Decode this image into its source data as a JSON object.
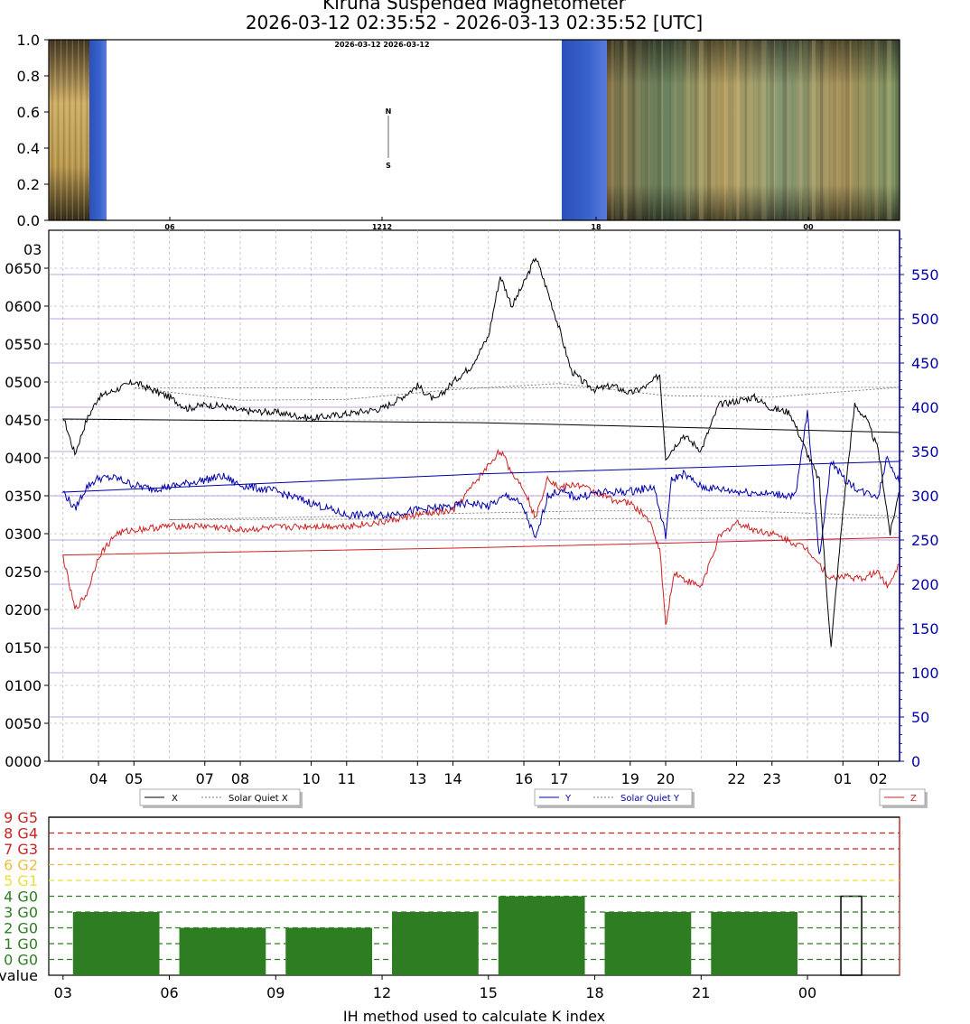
{
  "page": {
    "title_line1": "Kiruna Suspended Magnetometer",
    "title_line2": "2026-03-12 02:35:52 - 2026-03-13 02:35:52 [UTC]"
  },
  "colors": {
    "x": "#000000",
    "y": "#0000aa",
    "z": "#cc2222",
    "quiet": "#777777",
    "hlines": "#9966cc",
    "kbar": "#2e7d22",
    "g5": "#cc2222",
    "g1": "#e8e040",
    "g0": "#2e7d22"
  },
  "chart_data": [
    {
      "type": "heatmap",
      "panel": "keogram",
      "ylim": [
        0,
        1
      ],
      "yticks": [
        "0.0",
        "0.2",
        "0.4",
        "0.6",
        "0.8",
        "1.0"
      ],
      "overlay_labels": {
        "date": "2026-03-12 2026-03-12",
        "north": "N",
        "south": "S",
        "bottom_ticks": [
          "06",
          "1212",
          "18",
          "00"
        ]
      }
    },
    {
      "type": "line",
      "panel": "magnetometer",
      "xlabel": "",
      "ylabel": "",
      "x_ticks": [
        "04",
        "05",
        "07",
        "08",
        "10",
        "11",
        "13",
        "14",
        "16",
        "17",
        "19",
        "20",
        "22",
        "23",
        "01",
        "02"
      ],
      "left_ticks": [
        "0650",
        "0600",
        "0550",
        "0500",
        "0450",
        "0400",
        "0350",
        "0300",
        "0250",
        "0200",
        "0150",
        "0100",
        "0050",
        "0000"
      ],
      "right_ticks": [
        "0",
        "50",
        "100",
        "150",
        "200",
        "250",
        "300",
        "350",
        "400",
        "450",
        "500",
        "550"
      ],
      "ylim_left": [
        0,
        700
      ],
      "ylim_right": [
        0,
        600
      ],
      "corner_label": "03",
      "series": [
        {
          "name": "X",
          "axis": "left",
          "x": [
            "2026-03-12 02:35",
            "03:00",
            "03:20",
            "03:40",
            "04:00",
            "04:30",
            "05:00",
            "05:30",
            "06:00",
            "06:30",
            "07:00",
            "07:30",
            "08:00",
            "09:00",
            "10:00",
            "10:30",
            "11:00",
            "12:00",
            "12:30",
            "13:00",
            "13:30",
            "14:00",
            "14:30",
            "15:00",
            "15:20",
            "15:40",
            "16:00",
            "16:20",
            "16:40",
            "17:00",
            "17:20",
            "17:40",
            "18:00",
            "18:30",
            "19:00",
            "19:30",
            "19:50",
            "20:00",
            "20:30",
            "21:00",
            "21:30",
            "22:00",
            "22:30",
            "23:00",
            "23:30",
            "00:00",
            "00:20",
            "00:30",
            "00:40",
            "01:00",
            "01:20",
            "01:40",
            "02:00",
            "2026-03-13 02:20",
            "2026-03-13 02:35"
          ],
          "values": [
            430,
            455,
            405,
            450,
            480,
            490,
            500,
            490,
            480,
            465,
            470,
            468,
            462,
            460,
            452,
            455,
            458,
            465,
            478,
            495,
            475,
            500,
            520,
            560,
            640,
            600,
            630,
            665,
            620,
            570,
            515,
            500,
            490,
            495,
            485,
            495,
            510,
            400,
            430,
            410,
            470,
            475,
            480,
            465,
            460,
            405,
            370,
            250,
            150,
            330,
            470,
            450,
            410,
            300,
            355
          ]
        },
        {
          "name": "Solar Quiet X",
          "axis": "left",
          "dashed": true,
          "x": [
            "2026-03-12 02:35",
            "05:00",
            "08:00",
            "11:00",
            "14:00",
            "17:00",
            "20:00",
            "23:00",
            "2026-03-13 02:35"
          ],
          "values": [
            493,
            492,
            476,
            477,
            490,
            498,
            482,
            480,
            493
          ]
        },
        {
          "name": "Y",
          "axis": "right",
          "x": [
            "2026-03-12 02:35",
            "03:00",
            "03:20",
            "03:40",
            "04:00",
            "04:30",
            "05:00",
            "05:30",
            "06:00",
            "07:00",
            "07:30",
            "08:00",
            "09:00",
            "10:00",
            "11:00",
            "12:00",
            "13:00",
            "14:00",
            "14:30",
            "15:00",
            "15:30",
            "15:45",
            "16:00",
            "16:20",
            "16:40",
            "17:00",
            "17:30",
            "18:00",
            "19:00",
            "19:40",
            "20:00",
            "20:10",
            "20:30",
            "21:00",
            "22:00",
            "23:00",
            "23:40",
            "00:00",
            "00:20",
            "00:40",
            "01:00",
            "01:30",
            "02:00",
            "2026-03-13 02:15",
            "2026-03-13 02:35"
          ],
          "values": [
            340,
            305,
            285,
            310,
            320,
            320,
            312,
            308,
            310,
            318,
            322,
            312,
            305,
            292,
            278,
            278,
            284,
            288,
            292,
            288,
            300,
            296,
            285,
            250,
            300,
            305,
            298,
            303,
            305,
            310,
            255,
            318,
            325,
            310,
            305,
            302,
            300,
            395,
            230,
            340,
            320,
            305,
            300,
            345,
            315
          ]
        },
        {
          "name": "Solar Quiet Y",
          "axis": "right",
          "dashed": true,
          "x": [
            "2026-03-12 02:35",
            "06:00",
            "10:00",
            "14:00",
            "18:00",
            "22:00",
            "2026-03-13 02:35"
          ],
          "values": [
            275,
            273,
            276,
            280,
            283,
            283,
            277
          ]
        },
        {
          "name": "Z",
          "axis": "left",
          "x": [
            "2026-03-12 02:35",
            "03:00",
            "03:20",
            "03:40",
            "04:00",
            "04:30",
            "05:00",
            "06:00",
            "07:00",
            "08:00",
            "09:00",
            "10:00",
            "11:00",
            "12:00",
            "13:00",
            "14:00",
            "14:30",
            "15:00",
            "15:20",
            "15:40",
            "16:00",
            "16:20",
            "16:40",
            "17:00",
            "17:30",
            "18:00",
            "18:30",
            "19:00",
            "19:30",
            "19:50",
            "20:00",
            "20:15",
            "20:30",
            "21:00",
            "21:30",
            "22:00",
            "22:30",
            "23:00",
            "23:30",
            "00:00",
            "00:20",
            "00:40",
            "01:00",
            "01:30",
            "02:00",
            "2026-03-13 02:15",
            "2026-03-13 02:35"
          ],
          "values": [
            292,
            270,
            200,
            220,
            270,
            300,
            305,
            310,
            310,
            305,
            308,
            310,
            310,
            315,
            325,
            330,
            360,
            390,
            410,
            380,
            360,
            320,
            375,
            360,
            365,
            355,
            345,
            340,
            320,
            280,
            180,
            250,
            240,
            230,
            295,
            315,
            305,
            300,
            290,
            280,
            260,
            240,
            245,
            240,
            250,
            230,
            260
          ]
        }
      ],
      "legend": [
        {
          "items": [
            "X",
            "Solar Quiet X"
          ]
        },
        {
          "items": [
            "Y",
            "Solar Quiet Y"
          ]
        },
        {
          "items": [
            "Z"
          ]
        }
      ]
    },
    {
      "type": "bar",
      "panel": "k-index",
      "xlabel": "IH method used to calculate K index",
      "ylabel": "",
      "ylim": [
        0,
        10
      ],
      "x_ticks": [
        "03",
        "06",
        "09",
        "12",
        "15",
        "18",
        "21",
        "00"
      ],
      "y_labels": [
        "value",
        "0 G0",
        "1 G0",
        "2 G0",
        "3 G0",
        "4 G0",
        "5 G1",
        "6 G2",
        "7 G3",
        "8 G4",
        "9 G5"
      ],
      "categories": [
        "03-06",
        "06-09",
        "09-12",
        "12-15",
        "15-18",
        "18-21",
        "21-00",
        "00-03"
      ],
      "values": [
        4,
        3,
        3,
        4,
        5,
        4,
        4,
        5
      ],
      "last_bar_outline_only": true
    }
  ]
}
